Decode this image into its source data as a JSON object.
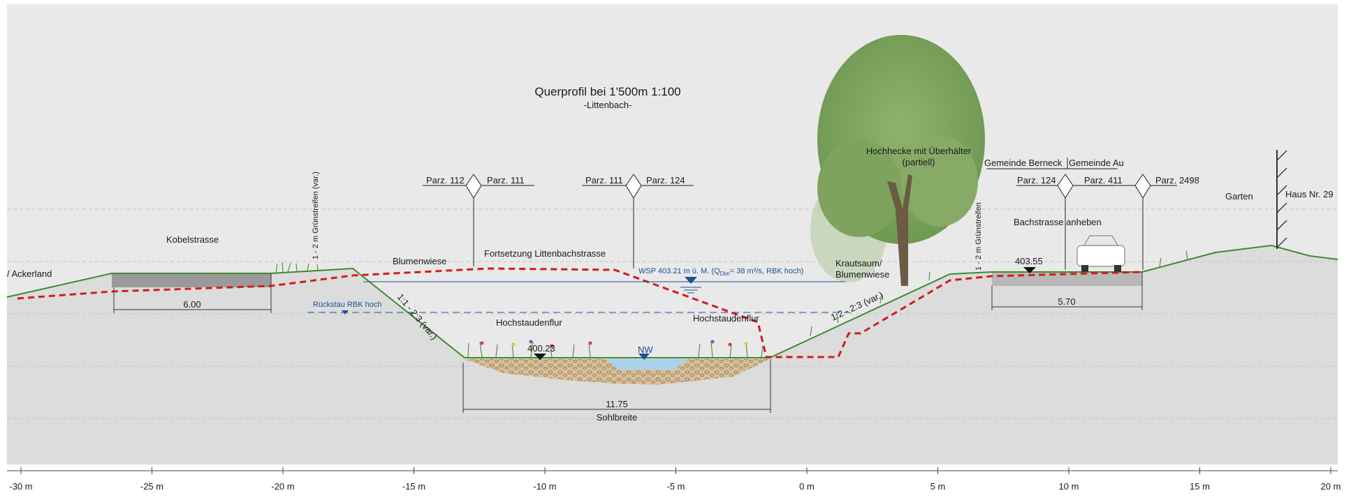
{
  "title": "Querprofil bei 1'500m 1:100",
  "subtitle": "-Littenbach-",
  "axis": {
    "ticks": [
      "-30 m",
      "-25 m",
      "-20 m",
      "-15 m",
      "-10 m",
      "-5 m",
      "0 m",
      "5 m",
      "10 m",
      "15 m",
      "20 m"
    ]
  },
  "parcels": {
    "p1_left": "Parz. 112",
    "p1_right": "Parz. 111",
    "p2_left": "Parz. 111",
    "p2_right": "Parz. 124",
    "p3_left": "Parz. 124",
    "p3_right": "Parz. 411",
    "p4_right": "Parz. 2498"
  },
  "municipalities": {
    "left": "Gemeinde Berneck",
    "right": "Gemeinde Au"
  },
  "labels": {
    "ackerland": "/ Ackerland",
    "kobelstrasse": "Kobelstrasse",
    "gruenstreifen_left": "1 - 2 m Grünstreifen (var.)",
    "gruenstreifen_right": "1 - 2 m Grünstreifen",
    "blumenwiese": "Blumenwiese",
    "fortsetzung": "Fortsetzung Littenbachstrasse",
    "wsp": "WSP 403.21 m ü. M. (Q",
    "wsp_sub": "Dim",
    "wsp_tail": "= 38 m³/s, RBK hoch)",
    "rueckstau": "Rückstau RBK hoch",
    "slope_left": "1:1 - 2:3 (var.)",
    "slope_right": "1:2 - 2:3 (var.)",
    "hochstaudenflur_left": "Hochstaudenflur",
    "hochstaudenflur_right": "Hochstaudenflur",
    "level_bed": "400.23",
    "nw": "NW",
    "krautsaum_1": "Krautsaum/",
    "krautsaum_2": "Blumenwiese",
    "hochhecke_1": "Hochhecke mit Überhälter",
    "hochhecke_2": "(partiell)",
    "bachstrasse": "Bachstrasse anheben",
    "level_road": "403.55",
    "garten": "Garten",
    "haus": "Haus Nr. 29"
  },
  "dimensions": {
    "left_road": "6.00",
    "right_road": "5.70",
    "sohle": "11.75",
    "sohle_label": "Sohlbreite"
  },
  "colors": {
    "ground": "#dcdcdc",
    "sky": "#e9e9e9",
    "road": "#9a9a9a",
    "grass": "#3f8a2e",
    "dashed_red": "#d01c1c",
    "water": "#a9d3ea",
    "gravel": "#d9bf98",
    "tree": "#7da35f",
    "text_blue": "#1d4f9a"
  }
}
